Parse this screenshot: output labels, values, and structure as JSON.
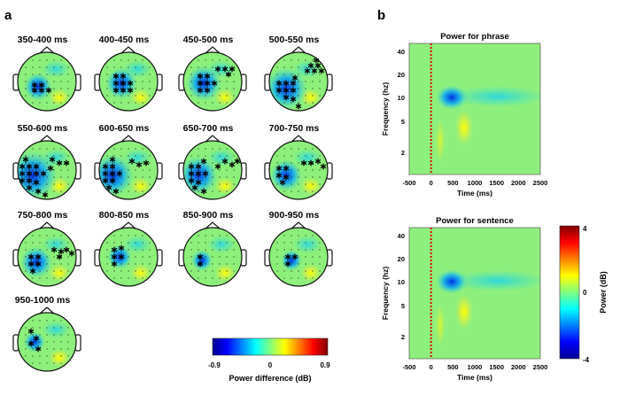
{
  "panel_a": {
    "label": "a",
    "maps": [
      "350-400 ms",
      "400-450 ms",
      "450-500 ms",
      "500-550 ms",
      "550-600 ms",
      "600-650 ms",
      "650-700 ms",
      "700-750 ms",
      "750-800 ms",
      "800-850 ms",
      "850-900 ms",
      "900-950 ms",
      "950-1000 ms"
    ],
    "colorbar": {
      "ticks": [
        "-0.9",
        "0",
        "0.9"
      ],
      "label": "Power difference (dB)"
    }
  },
  "panel_b": {
    "label": "b"
  },
  "chart_data": [
    {
      "type": "heatmap",
      "title": "Power for phrase",
      "xlabel": "Time (ms)",
      "ylabel": "Frequency (hz)",
      "xticks": [
        "-500",
        "0",
        "500",
        "1000",
        "1500",
        "2000",
        "2500"
      ],
      "yticks": [
        "40",
        "20",
        "10",
        "5",
        "2"
      ],
      "xlim": [
        -500,
        2500
      ],
      "yscale": "log",
      "onset_marker_ms": 0
    },
    {
      "type": "heatmap",
      "title": "Power for sentence",
      "xlabel": "Time (ms)",
      "ylabel": "Frequency (hz)",
      "xticks": [
        "-500",
        "0",
        "500",
        "1000",
        "1500",
        "2000",
        "2500"
      ],
      "yticks": [
        "40",
        "20",
        "10",
        "5",
        "2"
      ],
      "xlim": [
        -500,
        2500
      ],
      "yscale": "log",
      "onset_marker_ms": 0
    }
  ],
  "colorbar": {
    "ticks": [
      "4",
      "0",
      "-4"
    ],
    "label": "Power (dB)",
    "range": [
      -4,
      4
    ]
  }
}
